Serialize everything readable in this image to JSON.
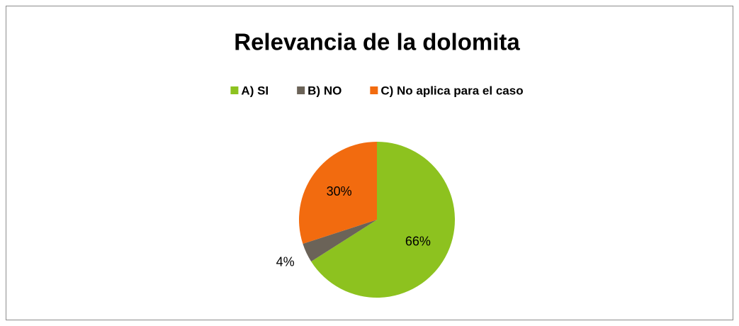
{
  "chart_data": {
    "type": "pie",
    "title": "Relevancia de la dolomita",
    "categories": [
      "A) SI",
      "B) NO",
      "C) No aplica para el caso"
    ],
    "values": [
      66,
      4,
      30
    ],
    "value_labels": [
      "66%",
      "4%",
      "30%"
    ],
    "colors": [
      "#8dc21f",
      "#6b6358",
      "#f26b0f"
    ],
    "legend": "top"
  }
}
